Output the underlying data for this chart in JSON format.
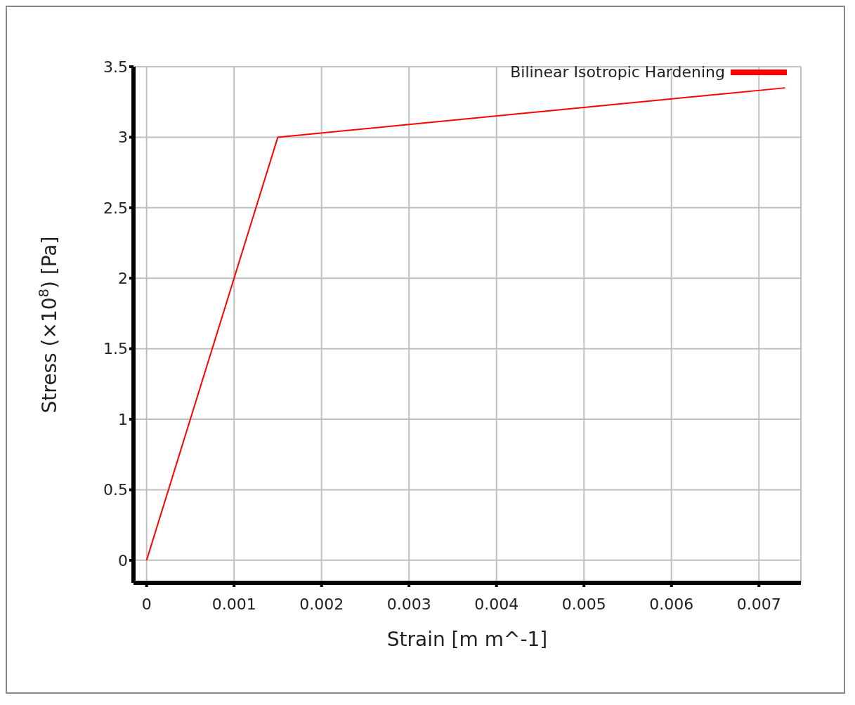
{
  "chart_data": {
    "type": "line",
    "xlabel": "Strain  [m m^-1]",
    "ylabel": "Stress  (×10$^{8}$)  [Pa]",
    "x": [
      0,
      0.0015,
      0.0073
    ],
    "series": [
      {
        "name": "Bilinear Isotropic Hardening",
        "color": "#ff0000",
        "values": [
          0,
          3,
          3.35
        ]
      }
    ],
    "xlim": [
      -0.00015,
      0.00748
    ],
    "xticks": [
      0,
      0.001,
      0.002,
      0.003,
      0.004,
      0.005,
      0.006,
      0.007
    ],
    "ylim": [
      -0.16,
      3.5
    ],
    "yticks": [
      0,
      0.5,
      1,
      1.5,
      2,
      2.5,
      3,
      3.5
    ],
    "grid": true,
    "legend": "top right",
    "marker": "none",
    "line_style": "solid"
  }
}
